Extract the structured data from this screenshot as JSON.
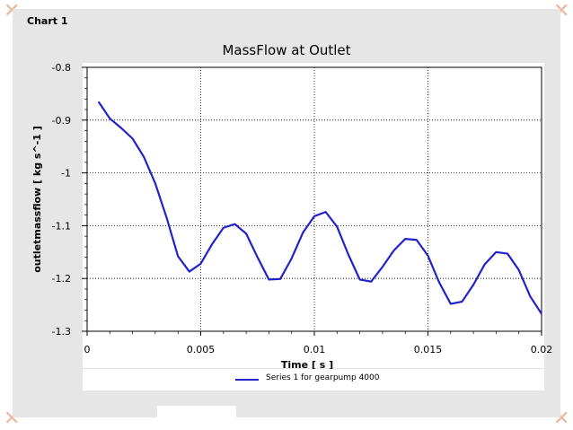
{
  "panel_title": "Chart 1",
  "chart_data": {
    "type": "line",
    "title": "MassFlow at Outlet",
    "xlabel": "Time [ s ]",
    "ylabel": "outletmassflow [ kg s^-1 ]",
    "xlim": [
      0,
      0.02
    ],
    "ylim": [
      -1.3,
      -0.8
    ],
    "xticks": [
      "0",
      "0.005",
      "0.01",
      "0.015",
      "0.02"
    ],
    "xtick_values": [
      0,
      0.005,
      0.01,
      0.015,
      0.02
    ],
    "yticks": [
      "-0.8",
      "-0.9",
      "-1",
      "-1.1",
      "-1.2",
      "-1.3"
    ],
    "ytick_values": [
      -0.8,
      -0.9,
      -1.0,
      -1.1,
      -1.2,
      -1.3
    ],
    "grid": true,
    "legend_position": "bottom",
    "series": [
      {
        "name": "Series 1 for gearpump 4000",
        "color": "#2222cc",
        "x": [
          0.0005,
          0.001,
          0.0015,
          0.002,
          0.0025,
          0.003,
          0.0035,
          0.004,
          0.0045,
          0.005,
          0.0055,
          0.006,
          0.0065,
          0.007,
          0.0075,
          0.008,
          0.0085,
          0.009,
          0.0095,
          0.01,
          0.0105,
          0.011,
          0.0115,
          0.012,
          0.0125,
          0.013,
          0.0135,
          0.014,
          0.0145,
          0.015,
          0.0155,
          0.016,
          0.0165,
          0.017,
          0.0175,
          0.018,
          0.0185,
          0.019,
          0.0195,
          0.02
        ],
        "y": [
          -0.865,
          -0.897,
          -0.915,
          -0.935,
          -0.97,
          -1.02,
          -1.085,
          -1.158,
          -1.187,
          -1.172,
          -1.135,
          -1.104,
          -1.097,
          -1.115,
          -1.16,
          -1.202,
          -1.201,
          -1.162,
          -1.113,
          -1.082,
          -1.074,
          -1.102,
          -1.155,
          -1.202,
          -1.206,
          -1.178,
          -1.147,
          -1.125,
          -1.127,
          -1.157,
          -1.208,
          -1.248,
          -1.244,
          -1.212,
          -1.173,
          -1.15,
          -1.153,
          -1.184,
          -1.234,
          -1.267
        ]
      }
    ]
  }
}
